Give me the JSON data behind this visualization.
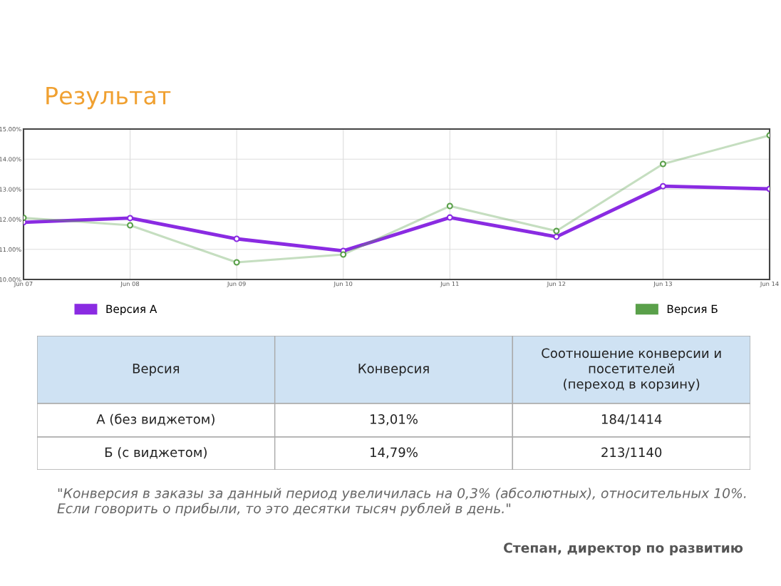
{
  "chart_data": {
    "type": "line",
    "title": "Результат",
    "categories": [
      "Jun 07",
      "Jun 08",
      "Jun 09",
      "Jun 10",
      "Jun 11",
      "Jun 12",
      "Jun 13",
      "Jun 14"
    ],
    "series": [
      {
        "name": "Версия А",
        "color": "#8a2be2",
        "values": [
          11.9,
          12.04,
          11.35,
          10.95,
          12.06,
          11.42,
          13.1,
          13.01
        ]
      },
      {
        "name": "Версия Б",
        "color": "#5aa04a",
        "values": [
          12.05,
          11.8,
          10.57,
          10.83,
          12.44,
          11.61,
          13.84,
          14.79
        ]
      }
    ],
    "ylim": [
      10,
      15
    ],
    "yticks": [
      {
        "value": 10,
        "label": "10.00%"
      },
      {
        "value": 11,
        "label": "11.00%"
      },
      {
        "value": 12,
        "label": "12.00%"
      },
      {
        "value": 13,
        "label": "13.00%"
      },
      {
        "value": 14,
        "label": "14.00%"
      },
      {
        "value": 15,
        "label": "15.00%"
      }
    ],
    "grid": true,
    "legend": "bottom",
    "marker": "circle",
    "line_style": "solid",
    "annotations": [
      "Версия",
      "Конверсия",
      "Соотношение конверсии и\nпосетителей\n(переход в корзину)",
      "А (без виджетом)",
      "13,01%",
      "184/1414",
      "Б (с виджетом)",
      "14,79%",
      "213/1140",
      "\"Конверсия в заказы за данный период увеличилась на 0,3% (абсолютных), относительных 10%. Если говорить о прибыли, то это десятки тысяч рублей в день.\"",
      "Степан, директор по развитию"
    ]
  }
}
